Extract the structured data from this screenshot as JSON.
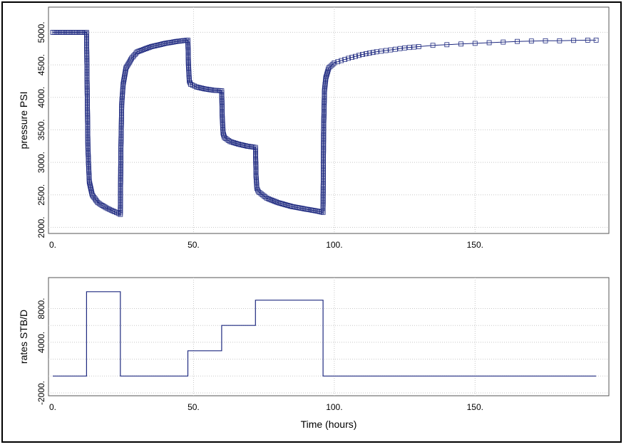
{
  "colors": {
    "series": "#1f2a80",
    "grid": "#c8c8c8",
    "frame": "#000000"
  },
  "chart_data": [
    {
      "type": "scatter",
      "title": "",
      "xlabel": "",
      "ylabel": "pressure PSI",
      "xlim": [
        0,
        195
      ],
      "ylim": [
        1950,
        5300
      ],
      "xticks": [
        0,
        50,
        100,
        150
      ],
      "xtick_labels": [
        "0.",
        "50.",
        "100.",
        "150."
      ],
      "yticks": [
        2000,
        2500,
        3000,
        3500,
        4000,
        4500,
        5000
      ],
      "ytick_labels": [
        "2000.",
        "2500.",
        "3000.",
        "3500.",
        "4000.",
        "4500.",
        "5000."
      ],
      "grid": true,
      "marker": "open-square",
      "series": [
        {
          "name": "",
          "points": [
            [
              0,
              5000
            ],
            [
              4,
              5000
            ],
            [
              8,
              5000
            ],
            [
              12,
              5000
            ],
            [
              12.2,
              4200
            ],
            [
              12.5,
              3200
            ],
            [
              13,
              2700
            ],
            [
              14,
              2500
            ],
            [
              16,
              2380
            ],
            [
              19,
              2300
            ],
            [
              22,
              2240
            ],
            [
              24,
              2200
            ],
            [
              24.2,
              3200
            ],
            [
              24.5,
              3900
            ],
            [
              25,
              4200
            ],
            [
              26,
              4450
            ],
            [
              28,
              4600
            ],
            [
              30,
              4700
            ],
            [
              35,
              4780
            ],
            [
              40,
              4830
            ],
            [
              44,
              4860
            ],
            [
              48,
              4880
            ],
            [
              48.2,
              4500
            ],
            [
              48.5,
              4250
            ],
            [
              49,
              4200
            ],
            [
              51,
              4160
            ],
            [
              54,
              4130
            ],
            [
              57,
              4110
            ],
            [
              60,
              4100
            ],
            [
              60.2,
              3700
            ],
            [
              60.5,
              3450
            ],
            [
              61,
              3380
            ],
            [
              63,
              3320
            ],
            [
              66,
              3280
            ],
            [
              69,
              3250
            ],
            [
              72,
              3230
            ],
            [
              72.2,
              2800
            ],
            [
              72.5,
              2600
            ],
            [
              73,
              2550
            ],
            [
              76,
              2450
            ],
            [
              80,
              2380
            ],
            [
              85,
              2320
            ],
            [
              90,
              2280
            ],
            [
              94,
              2250
            ],
            [
              96,
              2230
            ],
            [
              96.2,
              3500
            ],
            [
              96.5,
              4100
            ],
            [
              97,
              4300
            ],
            [
              98,
              4450
            ],
            [
              100,
              4530
            ],
            [
              105,
              4600
            ],
            [
              110,
              4660
            ],
            [
              115,
              4700
            ],
            [
              120,
              4730
            ],
            [
              125,
              4760
            ],
            [
              130,
              4780
            ],
            [
              135,
              4800
            ],
            [
              140,
              4810
            ],
            [
              145,
              4820
            ],
            [
              150,
              4830
            ],
            [
              155,
              4840
            ],
            [
              160,
              4850
            ],
            [
              165,
              4860
            ],
            [
              170,
              4865
            ],
            [
              175,
              4870
            ],
            [
              180,
              4870
            ],
            [
              185,
              4875
            ],
            [
              190,
              4880
            ],
            [
              193,
              4880
            ]
          ]
        }
      ]
    },
    {
      "type": "line",
      "title": "",
      "xlabel": "Time (hours)",
      "ylabel": "rates STB/D",
      "xlim": [
        0,
        195
      ],
      "ylim": [
        -2000,
        11000
      ],
      "xticks": [
        0,
        50,
        100,
        150
      ],
      "xtick_labels": [
        "0.",
        "50.",
        "100.",
        "150."
      ],
      "yticks": [
        -2000,
        4000,
        8000
      ],
      "ytick_labels": [
        "-2000.",
        "4000.",
        "8000."
      ],
      "grid": true,
      "step": true,
      "series": [
        {
          "name": "",
          "points": [
            [
              0,
              0
            ],
            [
              12,
              0
            ],
            [
              12,
              10000
            ],
            [
              24,
              10000
            ],
            [
              24,
              0
            ],
            [
              48,
              0
            ],
            [
              48,
              3000
            ],
            [
              60,
              3000
            ],
            [
              60,
              6000
            ],
            [
              72,
              6000
            ],
            [
              72,
              9000
            ],
            [
              96,
              9000
            ],
            [
              96,
              0
            ],
            [
              193,
              0
            ]
          ]
        }
      ]
    }
  ]
}
